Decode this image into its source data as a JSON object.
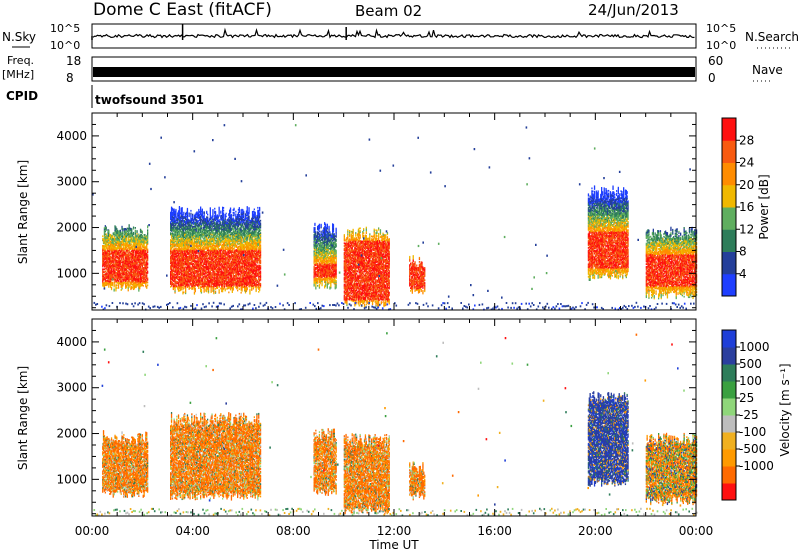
{
  "header": {
    "station": "Dome C East (fitACF)",
    "beam": "Beam 02",
    "date": "24/Jun/2013"
  },
  "strips": {
    "nsky_label": "N.Sky",
    "nsky_ticks": [
      "10^5",
      "10^0"
    ],
    "nsearch_label": "N.Search",
    "nsearch_ticks": [
      "10^5",
      "10^0"
    ],
    "freq_label_1": "Freq.",
    "freq_label_2": "[MHz]",
    "freq_ticks": [
      "18",
      "8"
    ],
    "nave_label": "Nave",
    "nave_ticks": [
      "60",
      "0"
    ],
    "cpid_label": "CPID",
    "cpid_value": "twofsound 3501"
  },
  "colors": {
    "power_scale": [
      "#1f3fff",
      "#243f9a",
      "#2e7d5a",
      "#5fae5f",
      "#f0b800",
      "#ff8c00",
      "#f85a10",
      "#ff1010"
    ],
    "velocity_scale": [
      "#ff1010",
      "#ff6a00",
      "#ff9a00",
      "#f0b020",
      "#bdbdbd",
      "#8fd67a",
      "#3aa040",
      "#2e7d5a",
      "#2b3f9e",
      "#1f3fd8"
    ]
  },
  "chart_data": [
    {
      "type": "heatmap",
      "name": "power",
      "ylabel": "Slant Range [km]",
      "ylim": [
        200,
        4500
      ],
      "yticks": [
        1000,
        2000,
        3000,
        4000
      ],
      "xlim": [
        0,
        24
      ],
      "colorbar": {
        "label": "Power [dB]",
        "range": [
          0,
          32
        ],
        "ticks": [
          4,
          8,
          12,
          16,
          20,
          24,
          28
        ]
      },
      "echo_regions": [
        {
          "t": [
            0.4,
            2.2
          ],
          "r": [
            650,
            2050
          ],
          "core": [
            800,
            1500
          ]
        },
        {
          "t": [
            3.1,
            6.7
          ],
          "r": [
            600,
            2450
          ],
          "core": [
            700,
            1500
          ]
        },
        {
          "t": [
            8.8,
            9.7
          ],
          "r": [
            700,
            2100
          ],
          "core": [
            900,
            1200
          ]
        },
        {
          "t": [
            10.0,
            11.8
          ],
          "r": [
            300,
            2000
          ],
          "core": [
            400,
            1700
          ]
        },
        {
          "t": [
            12.6,
            13.2
          ],
          "r": [
            600,
            1400
          ],
          "core": [
            650,
            1300
          ]
        },
        {
          "t": [
            19.7,
            21.3
          ],
          "r": [
            900,
            2900
          ],
          "core": [
            1100,
            1900
          ]
        },
        {
          "t": [
            22.0,
            24.0
          ],
          "r": [
            500,
            2000
          ],
          "core": [
            700,
            1400
          ]
        }
      ]
    },
    {
      "type": "heatmap",
      "name": "velocity",
      "ylabel": "Slant Range [km]",
      "xlabel": "Time UT",
      "ylim": [
        200,
        4500
      ],
      "yticks": [
        1000,
        2000,
        3000,
        4000
      ],
      "xlim": [
        0,
        24
      ],
      "xticks": [
        "00:00",
        "04:00",
        "08:00",
        "12:00",
        "16:00",
        "20:00",
        "00:00"
      ],
      "colorbar": {
        "label": "Velocity [m s⁻¹]",
        "ticks": [
          "1000",
          "500",
          "100",
          "25",
          "-25",
          "-100",
          "-500",
          "-1000"
        ]
      },
      "echo_regions": [
        {
          "t": [
            0.4,
            2.2
          ],
          "r": [
            650,
            2050
          ],
          "v": "away"
        },
        {
          "t": [
            3.1,
            6.7
          ],
          "r": [
            600,
            2450
          ],
          "v": "away"
        },
        {
          "t": [
            8.8,
            9.7
          ],
          "r": [
            700,
            2100
          ],
          "v": "away"
        },
        {
          "t": [
            10.0,
            11.8
          ],
          "r": [
            300,
            2000
          ],
          "v": "away"
        },
        {
          "t": [
            12.6,
            13.2
          ],
          "r": [
            600,
            1400
          ],
          "v": "away"
        },
        {
          "t": [
            19.7,
            21.3
          ],
          "r": [
            900,
            2900
          ],
          "v": "toward"
        },
        {
          "t": [
            22.0,
            24.0
          ],
          "r": [
            500,
            2000
          ],
          "v": "mixed"
        }
      ]
    }
  ]
}
